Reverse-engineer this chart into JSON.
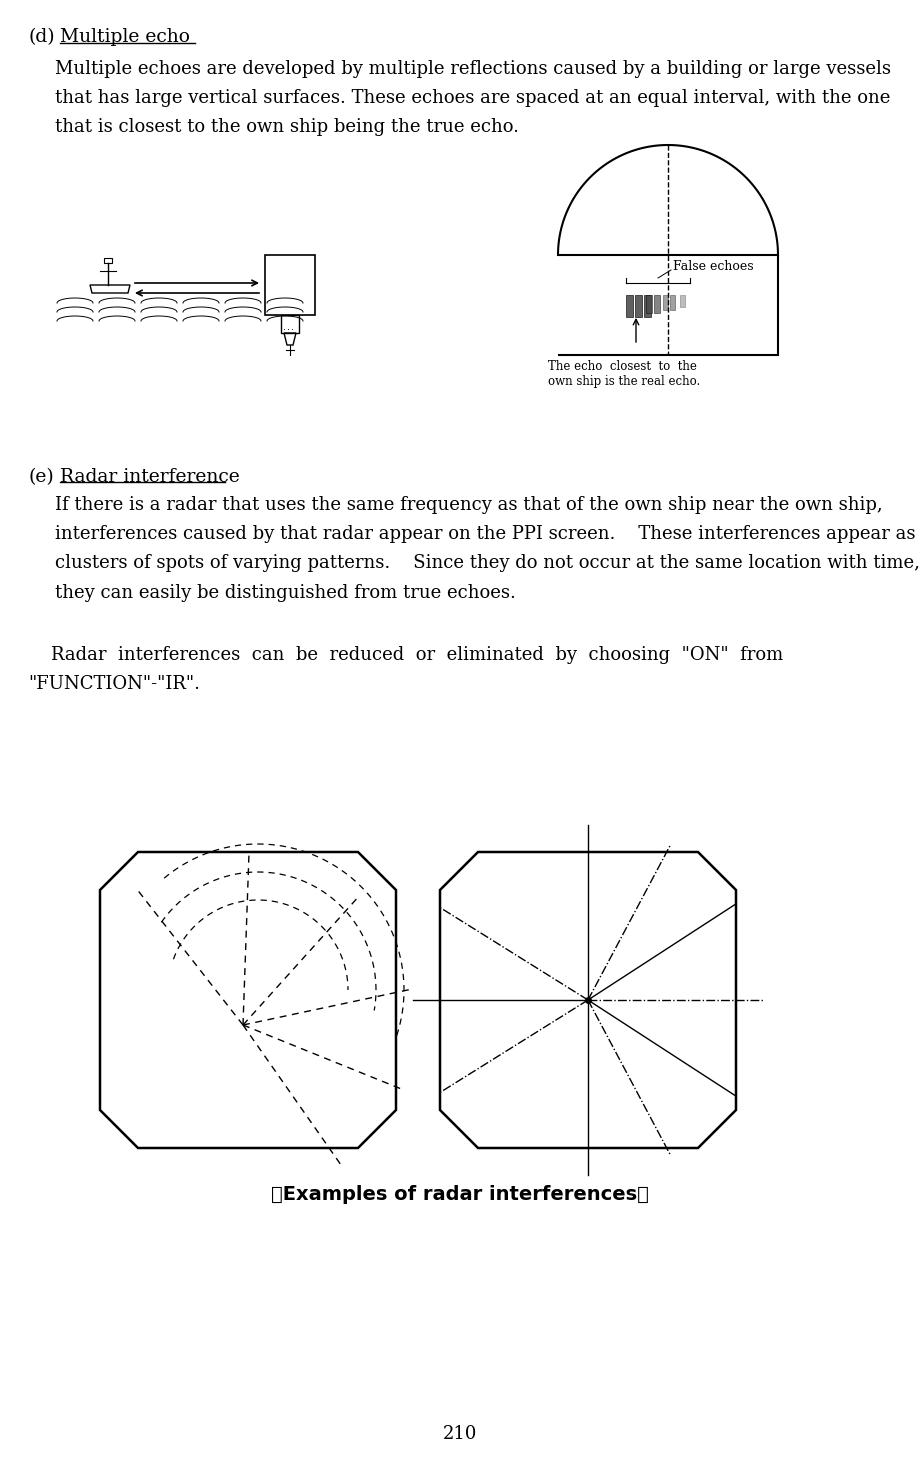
{
  "page_number": "210",
  "background_color": "#ffffff",
  "text_color": "#000000",
  "section_d_label": "(d)",
  "section_d_title": "Multiple echo",
  "section_d_para": "Multiple echoes are developed by multiple reflections caused by a building or large vessels\nthat has large vertical surfaces. These echoes are spaced at an equal interval, with the one\nthat is closest to the own ship being the true echo.",
  "section_e_label": "(e)",
  "section_e_title": "Radar interference",
  "section_e_para1": "If there is a radar that uses the same frequency as that of the own ship near the own ship,\ninterferences caused by that radar appear on the PPI screen.    These interferences appear as\nclusters of spots of varying patterns.    Since they do not occur at the same location with time,\nthey can easily be distinguished from true echoes.",
  "section_e_para2": "    Radar  interferences  can  be  reduced  or  eliminated  by  choosing  \"ON\"  from\n\"FUNCTION\"-\"IR\".",
  "caption": "【Examples of radar interferences】",
  "false_echoes_label": "False echoes",
  "true_echo_label": "The echo  closest  to  the\nown ship is the real echo."
}
